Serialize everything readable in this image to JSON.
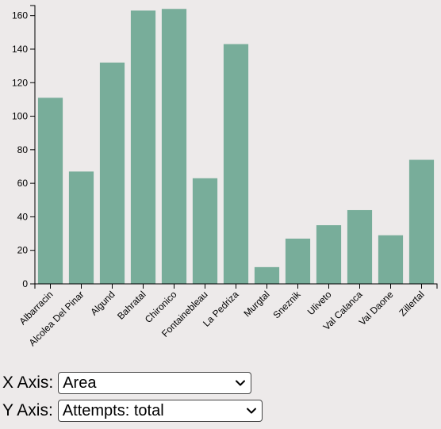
{
  "colors": {
    "bar": "#78ad9a",
    "background": "#edeaea",
    "axis": "#000000"
  },
  "chart_data": {
    "type": "bar",
    "categories": [
      "Albarracin",
      "Alcolea Del Pinar",
      "Algund",
      "Bahratal",
      "Chironico",
      "Fontainebleau",
      "La Pedriza",
      "Murgtal",
      "Sneznik",
      "Uliveto",
      "Val Calanca",
      "Val Daone",
      "Zillertal"
    ],
    "values": [
      111,
      67,
      132,
      163,
      164,
      63,
      143,
      10,
      27,
      35,
      44,
      29,
      74
    ],
    "yticks": [
      0,
      20,
      40,
      60,
      80,
      100,
      120,
      140,
      160
    ],
    "ylim": [
      0,
      166
    ],
    "grid": false
  },
  "controls": {
    "x_axis": {
      "label": "X Axis:",
      "selected": "Area"
    },
    "y_axis": {
      "label": "Y Axis:",
      "selected": "Attempts: total"
    }
  }
}
